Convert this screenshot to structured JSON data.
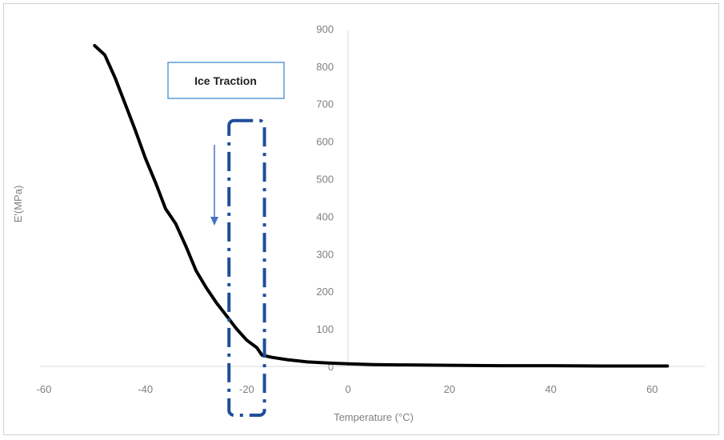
{
  "chart_data": {
    "type": "line",
    "title": "",
    "xlabel": "Temperature (°C)",
    "ylabel": "E'(MPa)",
    "xlim": [
      -60,
      70
    ],
    "ylim": [
      0,
      900
    ],
    "x_ticks": [
      -60,
      -40,
      -20,
      0,
      20,
      40,
      60
    ],
    "y_ticks": [
      0,
      100,
      200,
      300,
      400,
      500,
      600,
      700,
      800,
      900
    ],
    "grid": false,
    "legend": "none",
    "series": [
      {
        "color": "#000000",
        "points": [
          [
            -50,
            855
          ],
          [
            -48,
            830
          ],
          [
            -46,
            770
          ],
          [
            -44,
            700
          ],
          [
            -42,
            630
          ],
          [
            -40,
            555
          ],
          [
            -38,
            490
          ],
          [
            -36,
            420
          ],
          [
            -34,
            380
          ],
          [
            -32,
            320
          ],
          [
            -30,
            255
          ],
          [
            -28,
            210
          ],
          [
            -26,
            170
          ],
          [
            -24,
            135
          ],
          [
            -22,
            100
          ],
          [
            -20,
            70
          ],
          [
            -18,
            50
          ],
          [
            -17,
            30
          ],
          [
            -15,
            24
          ],
          [
            -12,
            18
          ],
          [
            -8,
            12
          ],
          [
            -4,
            9
          ],
          [
            0,
            7
          ],
          [
            5,
            5
          ],
          [
            10,
            4
          ],
          [
            20,
            3
          ],
          [
            30,
            2
          ],
          [
            40,
            2
          ],
          [
            50,
            1
          ],
          [
            60,
            1
          ],
          [
            63,
            1
          ]
        ]
      }
    ],
    "annotations": {
      "label": "Ice Traction",
      "arrow_color": "#4472c4",
      "box_color": "#1f4e9a",
      "region_x": [
        -23.5,
        -16.5
      ],
      "region_y": [
        -130,
        655
      ]
    }
  }
}
